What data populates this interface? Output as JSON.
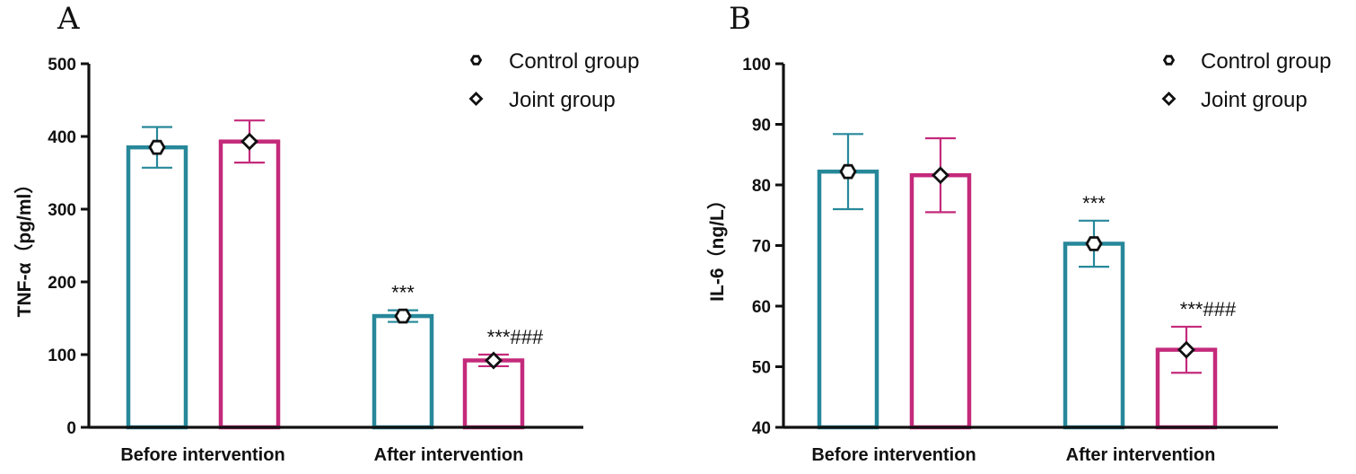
{
  "chart_data": [
    {
      "type": "bar",
      "panel": "A",
      "categories": [
        "Before intervention",
        "After intervention"
      ],
      "ylabel": "TNF-α（pg/ml）",
      "ylim": [
        0,
        500
      ],
      "yticks": [
        0,
        100,
        200,
        300,
        400,
        500
      ],
      "legend_position": "top-right",
      "series": [
        {
          "name": "Control group",
          "marker": "hexagon",
          "color": "#27889A",
          "values": [
            385,
            153
          ],
          "errors": [
            28,
            8
          ]
        },
        {
          "name": "Joint group",
          "marker": "diamond",
          "color": "#C42A7B",
          "values": [
            393,
            92
          ],
          "errors": [
            29,
            8
          ]
        }
      ],
      "annotations": [
        {
          "category": 1,
          "series": 0,
          "text": "***"
        },
        {
          "category": 1,
          "series": 1,
          "text": "***###"
        }
      ]
    },
    {
      "type": "bar",
      "panel": "B",
      "categories": [
        "Before intervention",
        "After intervention"
      ],
      "ylabel": "IL-6（ng/L）",
      "ylim": [
        40,
        100
      ],
      "yticks": [
        40,
        50,
        60,
        70,
        80,
        90,
        100
      ],
      "legend_position": "top-right",
      "series": [
        {
          "name": "Control group",
          "marker": "hexagon",
          "color": "#27889A",
          "values": [
            82.2,
            70.3
          ],
          "errors": [
            6.2,
            3.8
          ]
        },
        {
          "name": "Joint group",
          "marker": "diamond",
          "color": "#C42A7B",
          "values": [
            81.6,
            52.8
          ],
          "errors": [
            6.1,
            3.8
          ]
        }
      ],
      "annotations": [
        {
          "category": 1,
          "series": 0,
          "text": "***"
        },
        {
          "category": 1,
          "series": 1,
          "text": "***###"
        }
      ]
    }
  ]
}
